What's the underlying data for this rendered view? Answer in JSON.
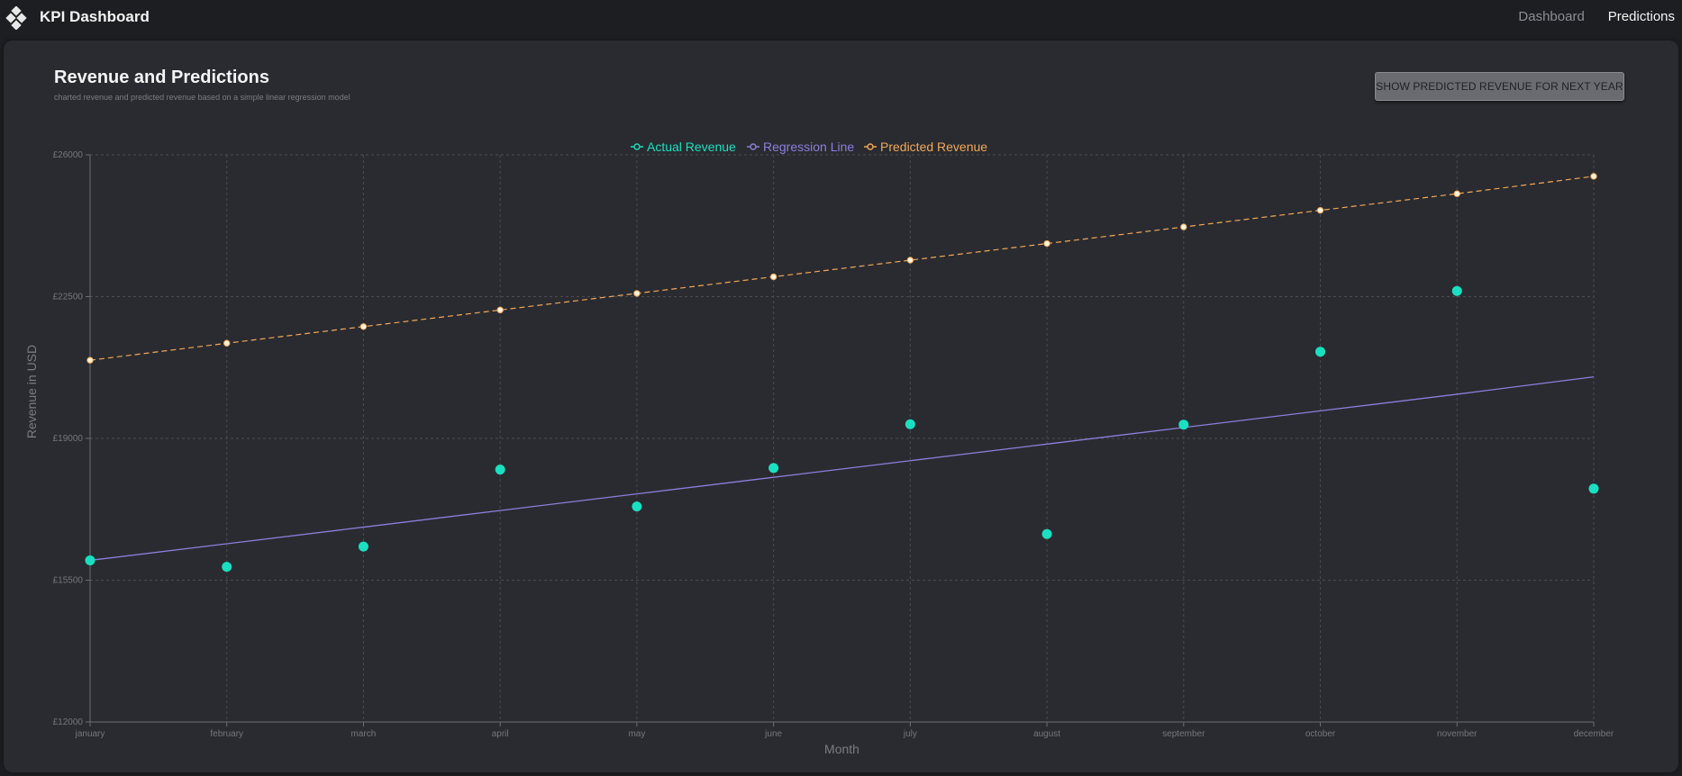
{
  "header": {
    "app_title": "KPI Dashboard",
    "nav": [
      {
        "label": "Dashboard",
        "active": false
      },
      {
        "label": "Predictions",
        "active": true
      }
    ]
  },
  "panel": {
    "title": "Revenue and Predictions",
    "subtitle": "charted revenue and predicted revenue based on a simple linear regression model",
    "button_label": "SHOW PREDICTED REVENUE FOR NEXT YEAR"
  },
  "colors": {
    "actual": "#19e0c1",
    "regression": "#8a7fdb",
    "predicted": "#f0a85a",
    "predicted_point_fill": "#fff4dc",
    "grid": "#4a4c52"
  },
  "chart_data": {
    "type": "line",
    "xlabel": "Month",
    "ylabel": "Revenue in USD",
    "ylim": [
      12000,
      26000
    ],
    "yticks": [
      12000,
      15500,
      19000,
      22500,
      26000
    ],
    "ytick_labels": [
      "£12000",
      "£15500",
      "£19000",
      "£22500",
      "£26000"
    ],
    "categories": [
      "january",
      "february",
      "march",
      "april",
      "may",
      "june",
      "july",
      "august",
      "september",
      "october",
      "november",
      "december"
    ],
    "legend_position": "top-center",
    "grid": true,
    "series": [
      {
        "name": "Actual Revenue",
        "style": "scatter",
        "values": [
          15990,
          15830,
          16330,
          18230,
          17320,
          18270,
          19350,
          16640,
          19340,
          21140,
          22640,
          17760
        ]
      },
      {
        "name": "Regression Line",
        "style": "line",
        "values": [
          15990,
          16400,
          16810,
          17220,
          17630,
          18040,
          18450,
          18860,
          19270,
          19680,
          20090,
          20520
        ]
      },
      {
        "name": "Predicted Revenue",
        "style": "dashed-line",
        "values": [
          20930,
          21350,
          21760,
          22170,
          22580,
          22990,
          23400,
          23810,
          24220,
          24630,
          25040,
          25470
        ]
      }
    ]
  }
}
